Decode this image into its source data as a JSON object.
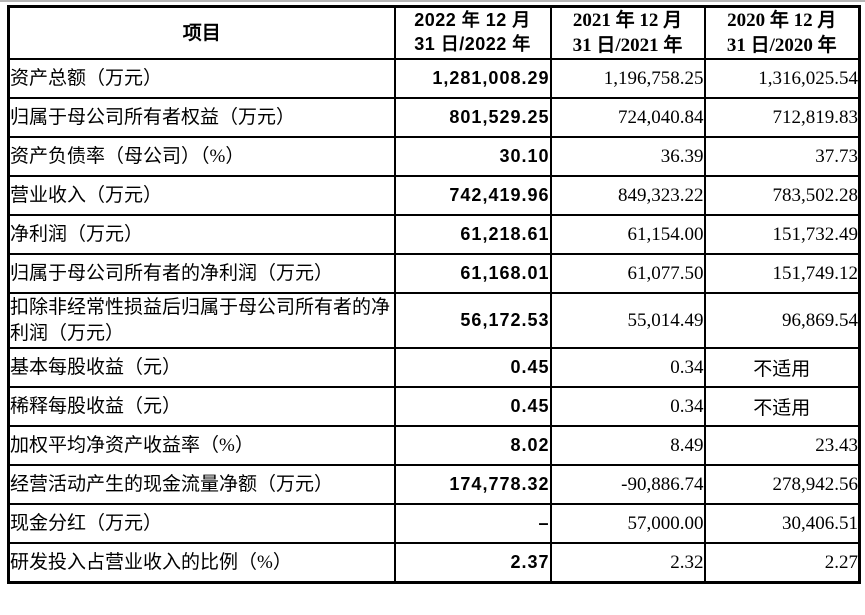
{
  "table": {
    "header": {
      "item": "项目",
      "col2022": "2022 年 12 月\n31 日/2022 年",
      "col2021": "2021 年 12 月\n31 日/2021 年",
      "col2020": "2020 年 12 月\n31 日/2020 年"
    },
    "rows": [
      {
        "label": "资产总额（万元）",
        "v2022": "1,281,008.29",
        "v2021": "1,196,758.25",
        "v2020": "1,316,025.54"
      },
      {
        "label": "归属于母公司所有者权益（万元）",
        "v2022": "801,529.25",
        "v2021": "724,040.84",
        "v2020": "712,819.83"
      },
      {
        "label": "资产负债率（母公司）（%）",
        "v2022": "30.10",
        "v2021": "36.39",
        "v2020": "37.73"
      },
      {
        "label": "营业收入（万元）",
        "v2022": "742,419.96",
        "v2021": "849,323.22",
        "v2020": "783,502.28"
      },
      {
        "label": "净利润（万元）",
        "v2022": "61,218.61",
        "v2021": "61,154.00",
        "v2020": "151,732.49"
      },
      {
        "label": "归属于母公司所有者的净利润（万元）",
        "v2022": "61,168.01",
        "v2021": "61,077.50",
        "v2020": "151,749.12"
      },
      {
        "label": "扣除非经常性损益后归属于母公司所有者的净利润（万元）",
        "v2022": "56,172.53",
        "v2021": "55,014.49",
        "v2020": "96,869.54"
      },
      {
        "label": "基本每股收益（元）",
        "v2022": "0.45",
        "v2021": "0.34",
        "v2020": "不适用"
      },
      {
        "label": "稀释每股收益（元）",
        "v2022": "0.45",
        "v2021": "0.34",
        "v2020": "不适用"
      },
      {
        "label": "加权平均净资产收益率（%）",
        "v2022": "8.02",
        "v2021": "8.49",
        "v2020": "23.43"
      },
      {
        "label": "经营活动产生的现金流量净额（万元）",
        "v2022": "174,778.32",
        "v2021": "-90,886.74",
        "v2020": "278,942.56"
      },
      {
        "label": "现金分红（万元）",
        "v2022": "–",
        "v2021": "57,000.00",
        "v2020": "30,406.51"
      },
      {
        "label": "研发投入占营业收入的比例（%）",
        "v2022": "2.37",
        "v2021": "2.32",
        "v2020": "2.27"
      }
    ],
    "colors": {
      "border": "#000000",
      "text": "#000000",
      "background": "#ffffff"
    }
  }
}
